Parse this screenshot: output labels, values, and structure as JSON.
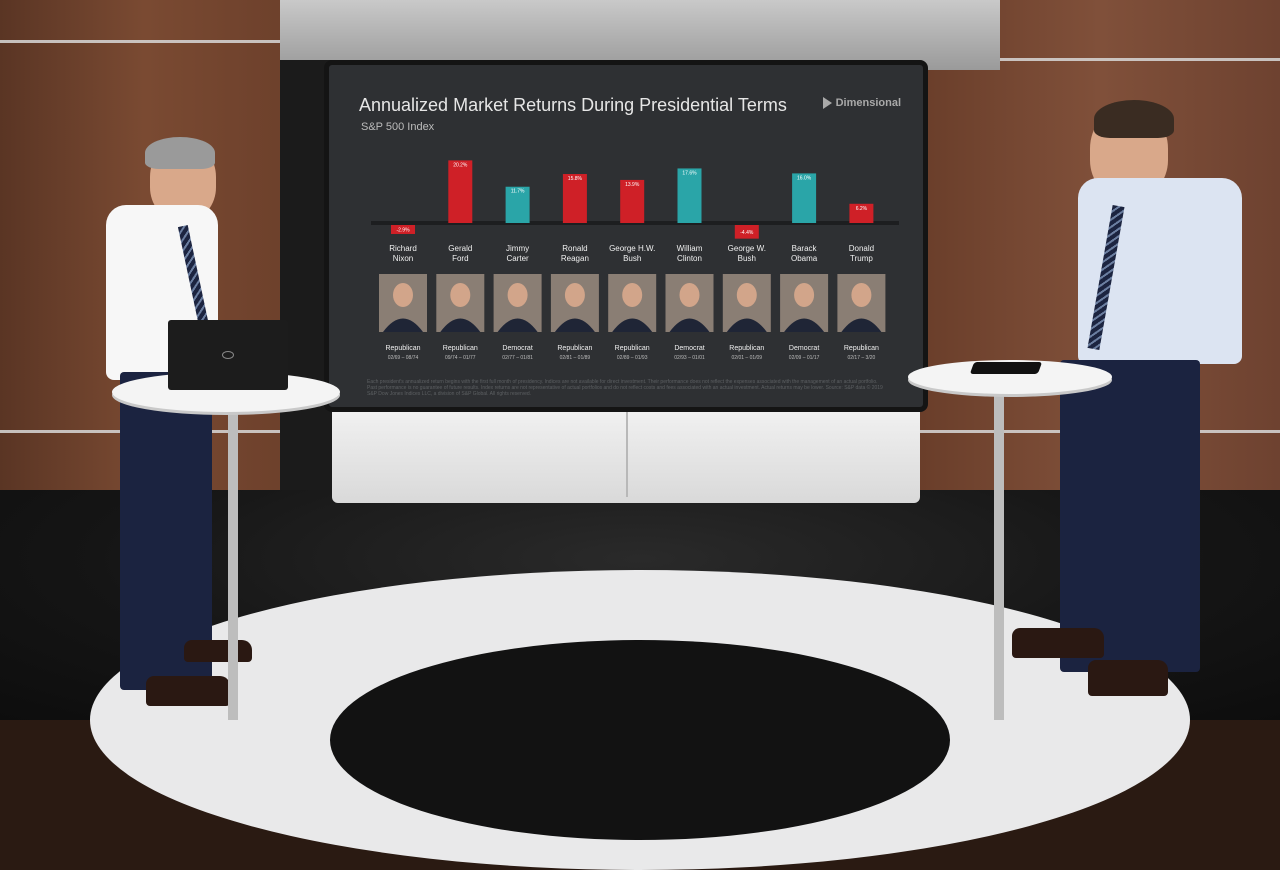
{
  "screen": {
    "brand": "Dimensional",
    "footnote": "Each president's annualized return begins with the first full month of presidency. Indices are not available for direct investment. Their performance does not reflect the expenses associated with the management of an actual portfolio. Past performance is no guarantee of future results. Index returns are not representative of actual portfolios and do not reflect costs and fees associated with an actual investment. Actual returns may be lower. Source: S&P data © 2019 S&P Dow Jones Indices LLC, a division of S&P Global. All rights reserved."
  },
  "colors": {
    "Republican": "#cf2027",
    "Democrat": "#2aa5a8"
  },
  "chart_data": {
    "type": "bar",
    "title": "Annualized Market Returns During Presidential Terms",
    "subtitle": "S&P 500 Index",
    "categories": [
      "Richard Nixon",
      "Gerald Ford",
      "Jimmy Carter",
      "Ronald Reagan",
      "George H.W. Bush",
      "William Clinton",
      "George W. Bush",
      "Barack Obama",
      "Donald Trump"
    ],
    "name_lines": [
      [
        "Richard",
        "Nixon"
      ],
      [
        "Gerald",
        "Ford"
      ],
      [
        "Jimmy",
        "Carter"
      ],
      [
        "Ronald",
        "Reagan"
      ],
      [
        "George H.W.",
        "Bush"
      ],
      [
        "William",
        "Clinton"
      ],
      [
        "George W.",
        "Bush"
      ],
      [
        "Barack",
        "Obama"
      ],
      [
        "Donald",
        "Trump"
      ]
    ],
    "values": [
      -2.9,
      20.2,
      11.7,
      15.8,
      13.9,
      17.6,
      -4.4,
      16.0,
      6.2
    ],
    "value_labels": [
      "-2.9%",
      "20.2%",
      "11.7%",
      "15.8%",
      "13.9%",
      "17.6%",
      "-4.4%",
      "16.0%",
      "6.2%"
    ],
    "party": [
      "Republican",
      "Republican",
      "Democrat",
      "Republican",
      "Republican",
      "Democrat",
      "Republican",
      "Democrat",
      "Republican"
    ],
    "terms": [
      "02/69 – 08/74",
      "09/74 – 01/77",
      "02/77 – 01/81",
      "02/81 – 01/89",
      "02/89 – 01/93",
      "02/93 – 01/01",
      "02/01 – 01/09",
      "02/09 – 01/17",
      "02/17 – 3/20"
    ],
    "xlabel": "",
    "ylabel": "",
    "ylim": [
      -5,
      21
    ]
  }
}
